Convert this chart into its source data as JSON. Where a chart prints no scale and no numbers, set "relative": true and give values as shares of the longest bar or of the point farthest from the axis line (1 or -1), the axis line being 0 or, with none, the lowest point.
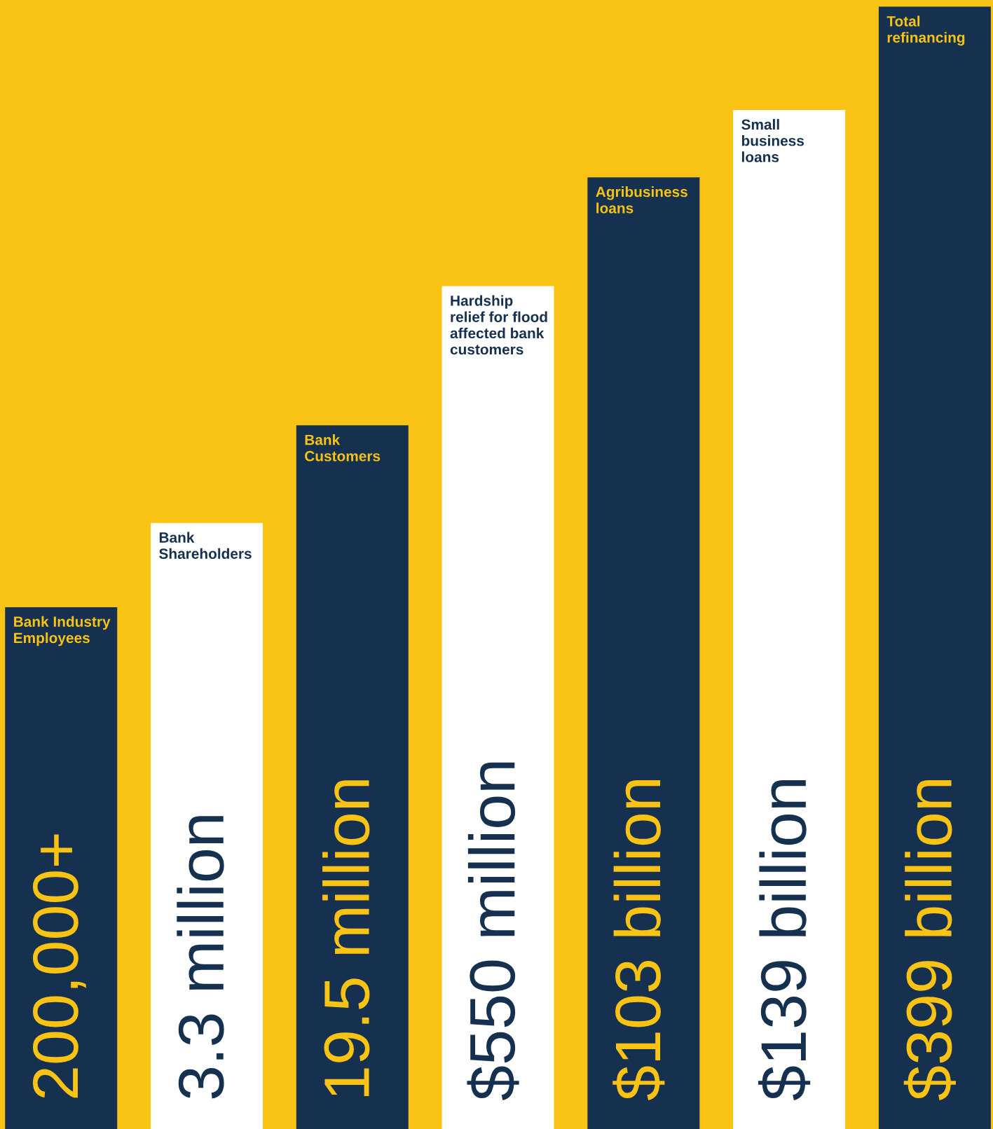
{
  "chart_data": {
    "type": "bar",
    "relative": true,
    "categories": [
      "Bank Industry\nEmployees",
      "Bank\nShareholders",
      "Bank\nCustomers",
      "Hardship\nrelief for flood\naffected bank\ncustomers",
      "Agribusiness\nloans",
      "Small\nbusiness\nloans",
      "Total\nrefinancing"
    ],
    "values": [
      0.465,
      0.54,
      0.627,
      0.751,
      0.848,
      0.908,
      1.0
    ],
    "colors": [
      "#16314f",
      "#ffffff",
      "#16314f",
      "#ffffff",
      "#16314f",
      "#ffffff",
      "#16314f"
    ],
    "annotations": [
      "200,000+",
      "3.3 million",
      "19.5 million",
      "$550 million",
      "$103 billion",
      "$139 billion",
      "$399 billion"
    ]
  }
}
